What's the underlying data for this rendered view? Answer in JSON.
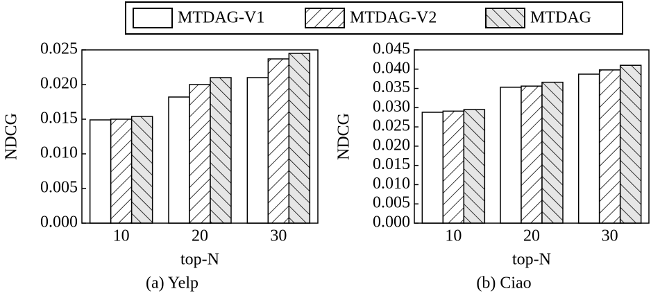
{
  "chart_data": [
    {
      "type": "bar",
      "caption": "(a) Yelp",
      "ylabel": "NDCG",
      "xlabel": "top-N",
      "categories": [
        "10",
        "20",
        "30"
      ],
      "series": [
        {
          "name": "MTDAG-V1",
          "color": "#ffffff",
          "hatch": "none",
          "values": [
            0.0149,
            0.0182,
            0.021
          ]
        },
        {
          "name": "MTDAG-V2",
          "color": "#ffffff",
          "hatch": "/",
          "values": [
            0.015,
            0.02,
            0.0237
          ]
        },
        {
          "name": "MTDAG",
          "color": "#e6e6e6",
          "hatch": "\\",
          "values": [
            0.0154,
            0.021,
            0.0245
          ]
        }
      ],
      "ylim": [
        0,
        0.025
      ],
      "yticks": [
        {
          "value": 0,
          "label": "0.000"
        },
        {
          "value": 0.005,
          "label": "0.005"
        },
        {
          "value": 0.01,
          "label": "0.010"
        },
        {
          "value": 0.015,
          "label": "0.015"
        },
        {
          "value": 0.02,
          "label": "0.020"
        },
        {
          "value": 0.025,
          "label": "0.025"
        }
      ]
    },
    {
      "type": "bar",
      "caption": "(b) Ciao",
      "ylabel": "NDCG",
      "xlabel": "top-N",
      "categories": [
        "10",
        "20",
        "30"
      ],
      "series": [
        {
          "color": "#ffffff",
          "hatch": "none",
          "values": [
            0.0288,
            0.0353,
            0.0387
          ]
        },
        {
          "color": "#ffffff",
          "hatch": "/",
          "values": [
            0.0291,
            0.0356,
            0.0398
          ]
        },
        {
          "color": "#e6e6e6",
          "hatch": "\\",
          "values": [
            0.0295,
            0.0366,
            0.041
          ]
        }
      ],
      "ylim": [
        0,
        0.045
      ],
      "yticks": [
        {
          "value": 0,
          "label": "0.000"
        },
        {
          "value": 0.005,
          "label": "0.005"
        },
        {
          "value": 0.01,
          "label": "0.010"
        },
        {
          "value": 0.015,
          "label": "0.015"
        },
        {
          "value": 0.02,
          "label": "0.020"
        },
        {
          "value": 0.025,
          "label": "0.025"
        },
        {
          "value": 0.03,
          "label": "0.030"
        },
        {
          "value": 0.035,
          "label": "0.035"
        },
        {
          "value": 0.04,
          "label": "0.040"
        },
        {
          "value": 0.045,
          "label": "0.045"
        }
      ]
    }
  ]
}
